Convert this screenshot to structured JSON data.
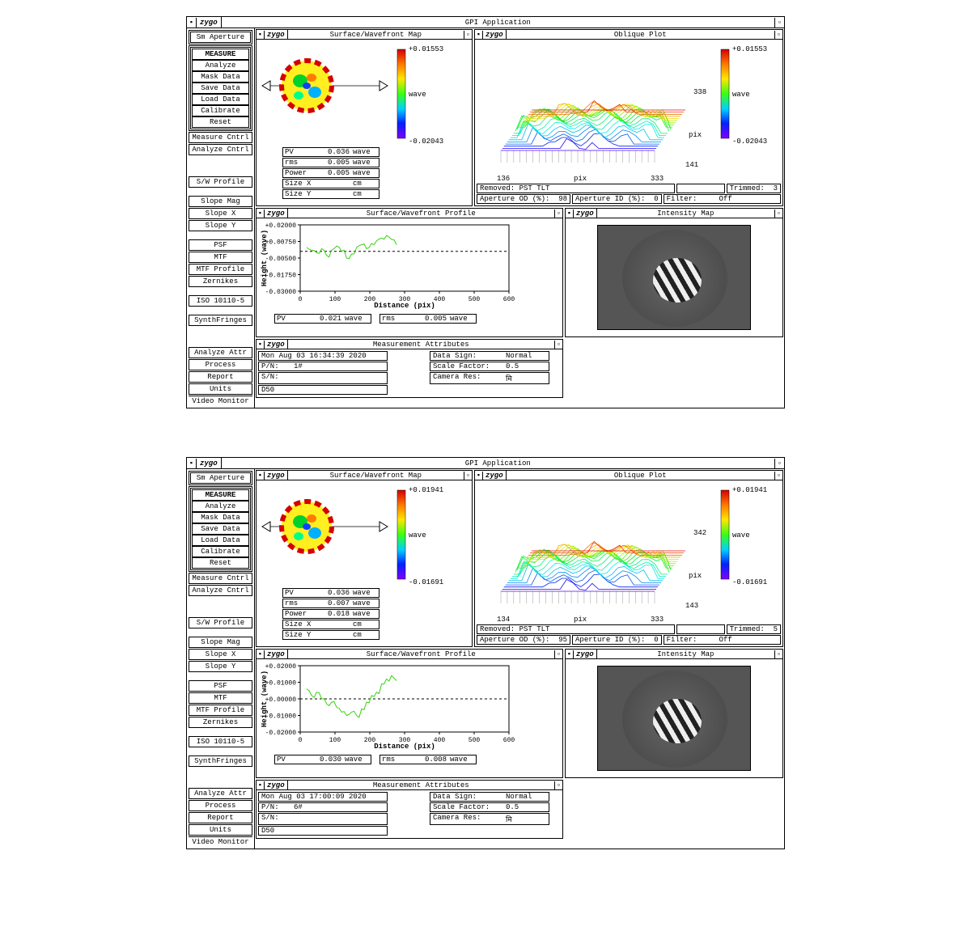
{
  "apps": [
    {
      "app_title": "GPI Application",
      "logo": "zygo",
      "sidebar": {
        "header": "Sm Aperture",
        "group1": [
          "MEASURE",
          "Analyze",
          "Mask Data",
          "Save Data",
          "Load Data",
          "Calibrate",
          "Reset"
        ],
        "group2": [
          "Measure Cntrl",
          "Analyze Cntrl"
        ],
        "group3": [
          "S/W Profile"
        ],
        "group4": [
          "Slope Mag",
          "Slope X",
          "Slope Y"
        ],
        "group5": [
          "PSF",
          "MTF",
          "MTF Profile",
          "Zernikes"
        ],
        "group6": [
          "ISO 10110-5"
        ],
        "group7": [
          "SynthFringes"
        ],
        "group8": [
          "Analyze Attr",
          "Process",
          "Report",
          "Units"
        ],
        "footer": "Video Monitor"
      },
      "wavefront_map": {
        "title": "Surface/Wavefront Map",
        "color_max": "+0.01553",
        "color_min": "-0.02043",
        "color_unit": "wave",
        "gradient": [
          "#d40000",
          "#ff7b00",
          "#ffe600",
          "#39ff14",
          "#00d0ff",
          "#0022ff",
          "#8000ff"
        ],
        "stats": [
          {
            "label": "PV",
            "value": "0.036",
            "unit": "wave"
          },
          {
            "label": "rms",
            "value": "0.005",
            "unit": "wave"
          },
          {
            "label": "Power",
            "value": "0.005",
            "unit": "wave"
          },
          {
            "label": "Size X",
            "value": "",
            "unit": "cm"
          },
          {
            "label": "Size Y",
            "value": "",
            "unit": "cm"
          }
        ]
      },
      "oblique_plot": {
        "title": "Oblique Plot",
        "color_max": "+0.01553",
        "color_min": "-0.02043",
        "color_unit": "wave",
        "x_axis": {
          "label": "pix",
          "min": "136",
          "max": "333"
        },
        "y_axis": {
          "label": "pix",
          "min": "141",
          "max": "338"
        },
        "info": {
          "removed": "Removed: PST TLT",
          "trimmed_lbl": "Trimmed:",
          "trimmed_val": "3",
          "ap_od_lbl": "Aperture OD (%):",
          "ap_od_val": "98",
          "ap_id_lbl": "Aperture ID (%):",
          "ap_id_val": "0",
          "filter_lbl": "Filter:",
          "filter_val": "Off"
        }
      },
      "profile": {
        "title": "Surface/Wavefront Profile",
        "ylabel": "Height (wave)",
        "xlabel": "Distance (pix)",
        "ylim": [
          -0.03,
          0.02
        ],
        "yticks": [
          "+0.02000",
          "+0.00750",
          "-0.00500",
          "-0.01750",
          "-0.03000"
        ],
        "xlim": [
          0,
          650
        ],
        "xticks": [
          "0",
          "100",
          "200",
          "300",
          "400",
          "500",
          "600"
        ],
        "line_color": "#39d010",
        "points_y": [
          0.003,
          0.001,
          -0.001,
          0.002,
          -0.003,
          0.001,
          0.004,
          0.0,
          -0.005,
          -0.002,
          0.003,
          0.005,
          0.002,
          0.006,
          0.008,
          0.01,
          0.012,
          0.009,
          0.005
        ],
        "pv": {
          "label": "PV",
          "value": "0.021",
          "unit": "wave"
        },
        "rms": {
          "label": "rms",
          "value": "0.005",
          "unit": "wave"
        }
      },
      "intensity": {
        "title": "Intensity Map"
      },
      "meas_attr": {
        "title": "Measurement Attributes",
        "datetime": "Mon Aug 03 16:34:39 2020",
        "pn_lbl": "P/N:",
        "pn_val": "1#",
        "sn_lbl": "S/N:",
        "sn_val": "",
        "d50": "D50",
        "sign_lbl": "Data Sign:",
        "sign_val": "Normal",
        "scale_lbl": "Scale Factor:",
        "scale_val": "0.5",
        "camres_lbl": "Camera Res:",
        "camres_val": "मि"
      }
    },
    {
      "app_title": "GPI Application",
      "logo": "zygo",
      "sidebar": {
        "header": "Sm Aperture",
        "group1": [
          "MEASURE",
          "Analyze",
          "Mask Data",
          "Save Data",
          "Load Data",
          "Calibrate",
          "Reset"
        ],
        "group2": [
          "Measure Cntrl",
          "Analyze Cntrl"
        ],
        "group3": [
          "S/W Profile"
        ],
        "group4": [
          "Slope Mag",
          "Slope X",
          "Slope Y"
        ],
        "group5": [
          "PSF",
          "MTF",
          "MTF Profile",
          "Zernikes"
        ],
        "group6": [
          "ISO 10110-5"
        ],
        "group7": [
          "SynthFringes"
        ],
        "group8": [
          "Analyze Attr",
          "Process",
          "Report",
          "Units"
        ],
        "footer": "Video Monitor"
      },
      "wavefront_map": {
        "title": "Surface/Wavefront Map",
        "color_max": "+0.01941",
        "color_min": "-0.01691",
        "color_unit": "wave",
        "gradient": [
          "#d40000",
          "#ff7b00",
          "#ffe600",
          "#39ff14",
          "#00d0ff",
          "#0022ff",
          "#8000ff"
        ],
        "stats": [
          {
            "label": "PV",
            "value": "0.036",
            "unit": "wave"
          },
          {
            "label": "rms",
            "value": "0.007",
            "unit": "wave"
          },
          {
            "label": "Power",
            "value": "0.018",
            "unit": "wave"
          },
          {
            "label": "Size X",
            "value": "",
            "unit": "cm"
          },
          {
            "label": "Size Y",
            "value": "",
            "unit": "cm"
          }
        ]
      },
      "oblique_plot": {
        "title": "Oblique Plot",
        "color_max": "+0.01941",
        "color_min": "-0.01691",
        "color_unit": "wave",
        "x_axis": {
          "label": "pix",
          "min": "134",
          "max": "333"
        },
        "y_axis": {
          "label": "pix",
          "min": "143",
          "max": "342"
        },
        "info": {
          "removed": "Removed: PST TLT",
          "trimmed_lbl": "Trimmed:",
          "trimmed_val": "5",
          "ap_od_lbl": "Aperture OD (%):",
          "ap_od_val": "95",
          "ap_id_lbl": "Aperture ID (%):",
          "ap_id_val": "0",
          "filter_lbl": "Filter:",
          "filter_val": "Off"
        }
      },
      "profile": {
        "title": "Surface/Wavefront Profile",
        "ylabel": "Height (wave)",
        "xlabel": "Distance (pix)",
        "ylim": [
          -0.02,
          0.02
        ],
        "yticks": [
          "+0.02000",
          "+0.01000",
          "+0.00000",
          "-0.01000",
          "-0.02000"
        ],
        "xlim": [
          0,
          650
        ],
        "xticks": [
          "0",
          "100",
          "200",
          "300",
          "400",
          "500",
          "600"
        ],
        "line_color": "#39d010",
        "points_y": [
          0.006,
          0.002,
          0.004,
          0.0,
          -0.003,
          -0.002,
          -0.005,
          -0.008,
          -0.01,
          -0.008,
          -0.01,
          -0.006,
          -0.002,
          0.002,
          0.004,
          0.009,
          0.012,
          0.014,
          0.011
        ],
        "pv": {
          "label": "PV",
          "value": "0.030",
          "unit": "wave"
        },
        "rms": {
          "label": "rms",
          "value": "0.008",
          "unit": "wave"
        }
      },
      "intensity": {
        "title": "Intensity Map"
      },
      "meas_attr": {
        "title": "Measurement Attributes",
        "datetime": "Mon Aug 03 17:00:09 2020",
        "pn_lbl": "P/N:",
        "pn_val": "6#",
        "sn_lbl": "S/N:",
        "sn_val": "",
        "d50": "D50",
        "sign_lbl": "Data Sign:",
        "sign_val": "Normal",
        "scale_lbl": "Scale Factor:",
        "scale_val": "0.5",
        "camres_lbl": "Camera Res:",
        "camres_val": "मि"
      }
    }
  ]
}
